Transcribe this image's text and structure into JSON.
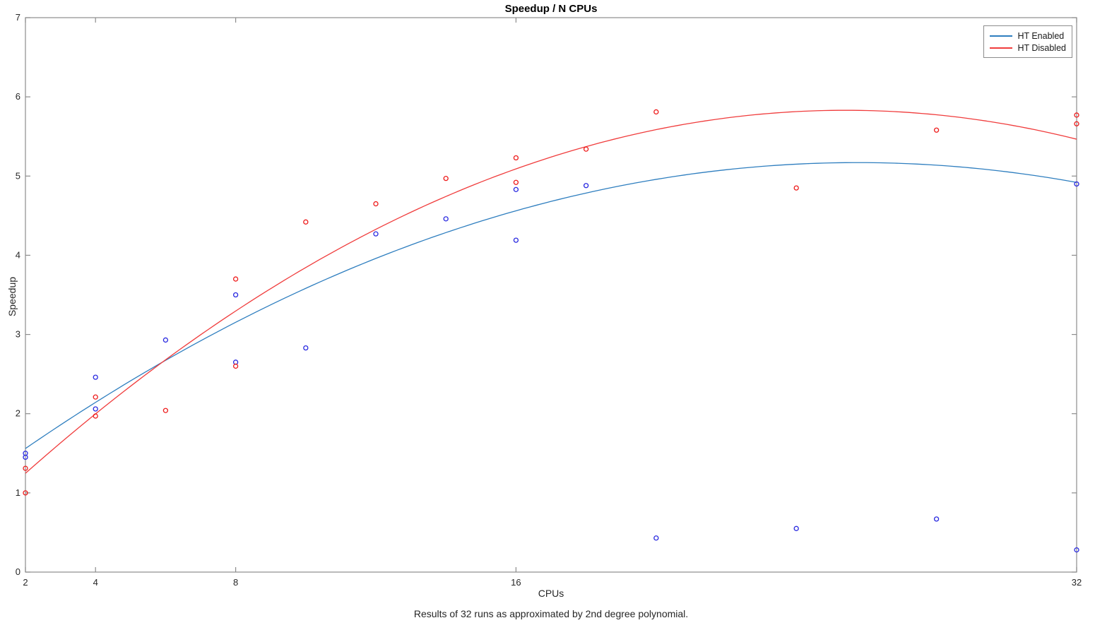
{
  "chart_data": {
    "type": "scatter",
    "title": "Speedup / N CPUs",
    "xlabel": "CPUs",
    "ylabel": "Speedup",
    "caption": "Results of 32 runs as approximated by 2nd degree polynomial.",
    "x_scale": "linear",
    "xlim": [
      2,
      32
    ],
    "ylim": [
      0,
      7
    ],
    "xticks": [
      2,
      4,
      8,
      16,
      32
    ],
    "yticks": [
      0,
      1,
      2,
      3,
      4,
      5,
      6,
      7
    ],
    "grid": false,
    "legend_position": "top-right",
    "axis_color": "#8c8c8c",
    "tick_label_color": "#262626",
    "series": [
      {
        "name": "HT Enabled",
        "marker": "o",
        "marker_color": "#2a2ae0",
        "line_color": "#2e7ebf",
        "fit_label": "2nd degree polynomial",
        "fit_poly_coeffs": [
          -0.0064,
          0.3296,
          0.9264
        ],
        "points": [
          [
            2,
            1.5
          ],
          [
            2,
            1.45
          ],
          [
            4,
            2.46
          ],
          [
            4,
            2.06
          ],
          [
            6,
            2.93
          ],
          [
            8,
            3.5
          ],
          [
            8,
            2.65
          ],
          [
            10,
            2.83
          ],
          [
            12,
            4.27
          ],
          [
            14,
            4.46
          ],
          [
            16,
            4.83
          ],
          [
            16,
            4.19
          ],
          [
            18,
            4.88
          ],
          [
            20,
            0.43
          ],
          [
            24,
            0.55
          ],
          [
            28,
            0.67
          ],
          [
            32,
            4.9
          ],
          [
            32,
            0.28
          ]
        ]
      },
      {
        "name": "HT Disabled",
        "marker": "o",
        "marker_color": "#ee1c1c",
        "line_color": "#f03c3c",
        "fit_label": "2nd degree polynomial",
        "fit_poly_coeffs": [
          -0.00837,
          0.4252,
          0.4302
        ],
        "points": [
          [
            2,
            1.31
          ],
          [
            2,
            1.0
          ],
          [
            4,
            2.21
          ],
          [
            4,
            1.97
          ],
          [
            6,
            2.04
          ],
          [
            8,
            3.7
          ],
          [
            8,
            2.6
          ],
          [
            10,
            4.42
          ],
          [
            12,
            4.65
          ],
          [
            14,
            4.97
          ],
          [
            16,
            5.23
          ],
          [
            16,
            4.92
          ],
          [
            18,
            5.34
          ],
          [
            20,
            5.81
          ],
          [
            24,
            4.85
          ],
          [
            28,
            5.58
          ],
          [
            32,
            5.77
          ],
          [
            32,
            5.66
          ]
        ]
      }
    ]
  }
}
